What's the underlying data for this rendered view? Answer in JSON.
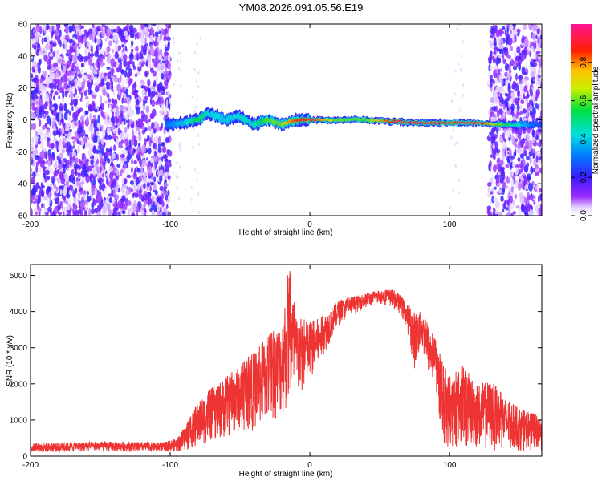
{
  "title": "YM08.2026.091.05.56.E19",
  "chart_data": [
    {
      "type": "heatmap",
      "xlabel": "Height of straight line (km)",
      "ylabel": "Frequency (Hz)",
      "xlim": [
        -200,
        166
      ],
      "ylim": [
        -60,
        60
      ],
      "xticks": [
        -200,
        -100,
        0,
        100
      ],
      "xtick_labels": [
        "-200",
        "-100",
        "0",
        "100"
      ],
      "yticks": [
        -60,
        -40,
        -20,
        0,
        20,
        40,
        60
      ],
      "ytick_labels": [
        "-60",
        "-40",
        "-20",
        "0",
        "20",
        "40",
        "60"
      ],
      "colorbar": {
        "label": "Normalized spectral amplitude",
        "range": [
          0,
          1
        ],
        "ticks": [
          0.0,
          0.2,
          0.4,
          0.6,
          0.8
        ],
        "tick_labels": [
          "0.0",
          "0.2",
          "0.4",
          "0.6",
          "0.8"
        ],
        "colormap": "rainbow (white-violet-blue-cyan-green-yellow-red-magenta)"
      },
      "features": {
        "noise_regions_km": [
          [
            -200,
            -100
          ],
          [
            128,
            166
          ]
        ],
        "signal_ridge": {
          "x": [
            -103,
            -90,
            -80,
            -73,
            -60,
            -50,
            -40,
            -30,
            -20,
            -10,
            0,
            20,
            40,
            60,
            80,
            100,
            120,
            140,
            160,
            166
          ],
          "freq_hz": [
            -3,
            -2,
            0,
            4,
            0,
            2,
            -3,
            0,
            -3,
            0,
            0,
            0,
            0,
            -1,
            -2,
            -2,
            -2,
            -3,
            -3,
            -3
          ],
          "peak_amplitude": [
            0.3,
            0.4,
            0.55,
            0.45,
            0.4,
            0.45,
            0.45,
            0.6,
            0.7,
            0.85,
            0.9,
            0.65,
            0.65,
            0.9,
            0.95,
            0.9,
            0.95,
            0.55,
            0.3,
            0.25
          ]
        }
      }
    },
    {
      "type": "line",
      "xlabel": "Height of straight line (km)",
      "ylabel": "SNR (10 * v/v)",
      "xlim": [
        -200,
        166
      ],
      "ylim": [
        0,
        5300
      ],
      "xticks": [
        -200,
        -100,
        0,
        100
      ],
      "xtick_labels": [
        "-200",
        "-100",
        "0",
        "100"
      ],
      "yticks": [
        0,
        1000,
        2000,
        3000,
        4000,
        5000
      ],
      "ytick_labels": [
        "0",
        "1000",
        "2000",
        "3000",
        "4000",
        "5000"
      ],
      "color": "#ee3333",
      "envelope": {
        "x": [
          -200,
          -150,
          -105,
          -95,
          -88,
          -80,
          -70,
          -60,
          -50,
          -40,
          -30,
          -20,
          -15,
          -10,
          0,
          10,
          20,
          30,
          40,
          50,
          60,
          65,
          70,
          75,
          80,
          85,
          90,
          95,
          100,
          110,
          120,
          130,
          140,
          150,
          166
        ],
        "max": [
          350,
          400,
          380,
          500,
          900,
          1500,
          1900,
          2200,
          2500,
          2900,
          3300,
          3700,
          5300,
          3900,
          3700,
          3900,
          4300,
          4400,
          4500,
          4600,
          4600,
          4450,
          4200,
          4000,
          4000,
          3600,
          3200,
          2600,
          2200,
          2500,
          2000,
          2100,
          1600,
          1300,
          1100
        ],
        "min": [
          100,
          120,
          120,
          120,
          150,
          250,
          400,
          500,
          600,
          700,
          900,
          1100,
          1200,
          1400,
          2000,
          2800,
          3600,
          3900,
          4100,
          4200,
          4100,
          3900,
          3400,
          2400,
          3000,
          2200,
          1900,
          300,
          200,
          200,
          150,
          150,
          150,
          150,
          150
        ]
      }
    }
  ]
}
